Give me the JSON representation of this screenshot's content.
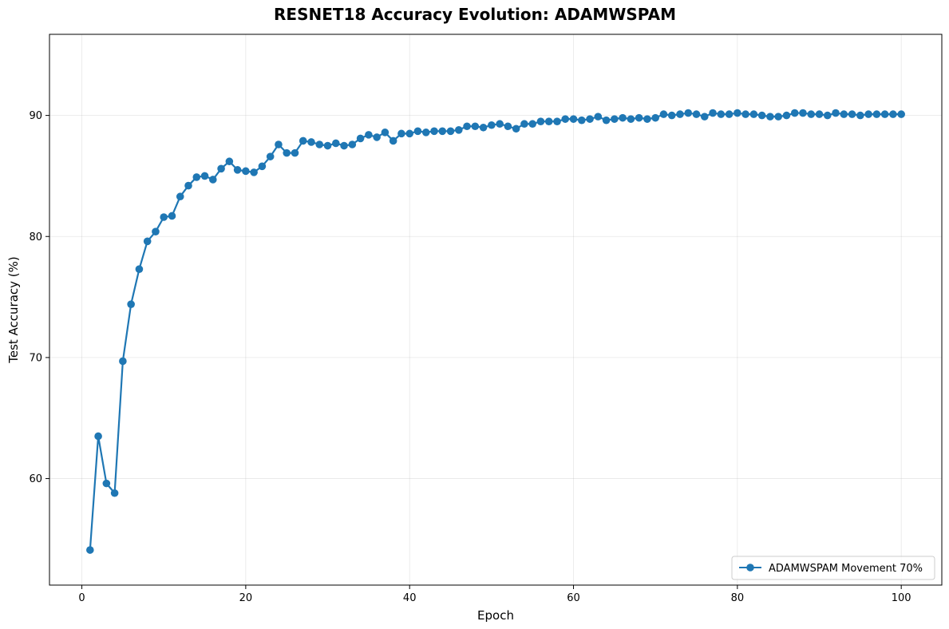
{
  "chart_data": {
    "type": "line",
    "title": "RESNET18 Accuracy Evolution: ADAMWSPAM",
    "xlabel": "Epoch",
    "ylabel": "Test Accuracy (%)",
    "xlim": [
      -3.95,
      104.95
    ],
    "ylim": [
      51.2,
      96.7
    ],
    "xticks": [
      0,
      20,
      40,
      60,
      80,
      100
    ],
    "yticks": [
      60,
      70,
      80,
      90
    ],
    "grid": true,
    "legend_position": "lower-right",
    "colors": {
      "series": "#1f77b4"
    },
    "series": [
      {
        "name": "ADAMWSPAM Movement 70%",
        "marker": "circle",
        "x": [
          1,
          2,
          3,
          4,
          5,
          6,
          7,
          8,
          9,
          10,
          11,
          12,
          13,
          14,
          15,
          16,
          17,
          18,
          19,
          20,
          21,
          22,
          23,
          24,
          25,
          26,
          27,
          28,
          29,
          30,
          31,
          32,
          33,
          34,
          35,
          36,
          37,
          38,
          39,
          40,
          41,
          42,
          43,
          44,
          45,
          46,
          47,
          48,
          49,
          50,
          51,
          52,
          53,
          54,
          55,
          56,
          57,
          58,
          59,
          60,
          61,
          62,
          63,
          64,
          65,
          66,
          67,
          68,
          69,
          70,
          71,
          72,
          73,
          74,
          75,
          76,
          77,
          78,
          79,
          80,
          81,
          82,
          83,
          84,
          85,
          86,
          87,
          88,
          89,
          90,
          91,
          92,
          93,
          94,
          95,
          96,
          97,
          98,
          99,
          100
        ],
        "y": [
          54.1,
          63.5,
          59.6,
          58.8,
          69.7,
          74.4,
          77.3,
          79.6,
          80.4,
          81.6,
          81.7,
          83.3,
          84.2,
          84.9,
          85.0,
          84.7,
          85.6,
          86.2,
          85.5,
          85.4,
          85.3,
          85.8,
          86.6,
          87.6,
          86.9,
          86.9,
          87.9,
          87.8,
          87.6,
          87.5,
          87.7,
          87.5,
          87.6,
          88.1,
          88.4,
          88.2,
          88.6,
          87.9,
          88.5,
          88.5,
          88.7,
          88.6,
          88.7,
          88.7,
          88.7,
          88.8,
          89.1,
          89.1,
          89.0,
          89.2,
          89.3,
          89.1,
          88.9,
          89.3,
          89.3,
          89.5,
          89.5,
          89.5,
          89.7,
          89.7,
          89.6,
          89.7,
          89.9,
          89.6,
          89.7,
          89.8,
          89.7,
          89.8,
          89.7,
          89.8,
          90.1,
          90.0,
          90.1,
          90.2,
          90.1,
          89.9,
          90.2,
          90.1,
          90.1,
          90.2,
          90.1,
          90.1,
          90.0,
          89.9,
          89.9,
          90.0,
          90.2,
          90.2,
          90.1,
          90.1,
          90.0,
          90.2,
          90.1,
          90.1,
          90.0,
          90.1,
          90.1,
          90.1,
          90.1,
          90.1
        ]
      }
    ]
  }
}
